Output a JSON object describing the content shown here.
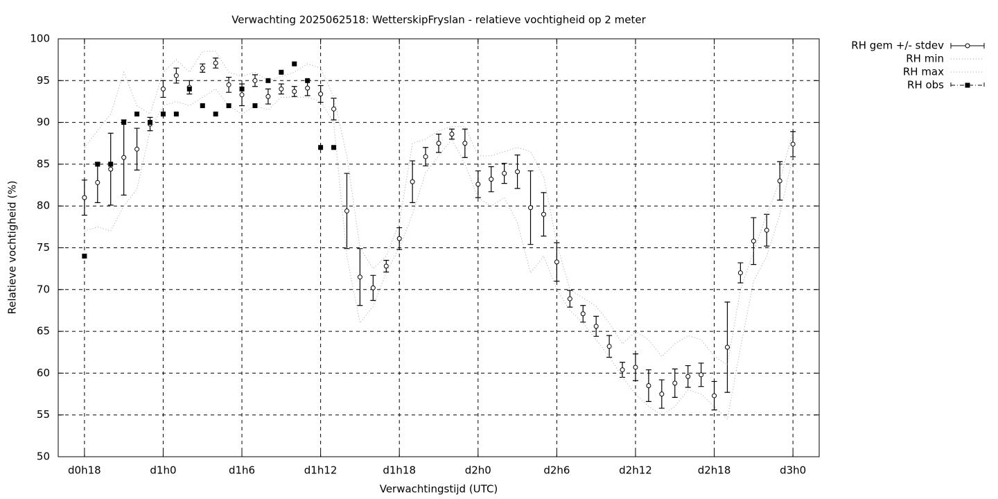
{
  "chart_data": {
    "type": "errorbar",
    "title": "Verwachting 2025062518: WetterskipFryslan - relatieve vochtigheid op 2 meter",
    "x_label": "Verwachtingstijd (UTC)",
    "y_label": "Relatieve vochtigheid (%)",
    "x": [
      18,
      19,
      20,
      21,
      22,
      23,
      24,
      25,
      26,
      27,
      28,
      29,
      30,
      31,
      32,
      33,
      34,
      35,
      36,
      37,
      38,
      39,
      40,
      41,
      42,
      43,
      44,
      45,
      46,
      47,
      48,
      49,
      50,
      51,
      52,
      53,
      54,
      55,
      56,
      57,
      58,
      59,
      60,
      61,
      62,
      63,
      64,
      65,
      66,
      67,
      68,
      69,
      70,
      71,
      72
    ],
    "xlim": [
      16,
      74
    ],
    "xticks": [
      {
        "value": 18,
        "label": "d0h18"
      },
      {
        "value": 24,
        "label": "d1h0"
      },
      {
        "value": 30,
        "label": "d1h6"
      },
      {
        "value": 36,
        "label": "d1h12"
      },
      {
        "value": 42,
        "label": "d1h18"
      },
      {
        "value": 48,
        "label": "d2h0"
      },
      {
        "value": 54,
        "label": "d2h6"
      },
      {
        "value": 60,
        "label": "d2h12"
      },
      {
        "value": 66,
        "label": "d2h18"
      },
      {
        "value": 72,
        "label": "d3h0"
      }
    ],
    "ylim": [
      50,
      100
    ],
    "yticks": [
      50,
      55,
      60,
      65,
      70,
      75,
      80,
      85,
      90,
      95,
      100
    ],
    "grid": true,
    "legend": "outside-top-right",
    "series": [
      {
        "name": "RH gem +/- stdev",
        "color": "#000000",
        "style": "errorbar",
        "values": [
          81.0,
          82.8,
          84.4,
          85.8,
          86.8,
          89.8,
          94.0,
          95.6,
          94.2,
          96.5,
          97.1,
          94.5,
          93.3,
          95.0,
          93.1,
          94.0,
          93.7,
          94.1,
          93.4,
          91.6,
          79.4,
          71.5,
          70.2,
          72.8,
          76.1,
          82.9,
          85.9,
          87.5,
          88.6,
          87.5,
          82.6,
          83.2,
          83.9,
          84.1,
          79.8,
          79.0,
          73.3,
          68.9,
          67.1,
          65.6,
          63.2,
          60.4,
          60.7,
          58.5,
          57.5,
          58.8,
          59.6,
          59.8,
          57.3,
          63.1,
          72.0,
          75.8,
          77.1,
          83.0,
          87.4
        ],
        "errors": [
          2.1,
          2.4,
          4.3,
          4.5,
          2.5,
          0.8,
          1.0,
          0.9,
          0.8,
          0.5,
          0.6,
          0.9,
          1.3,
          0.7,
          0.9,
          0.6,
          0.6,
          0.9,
          1.0,
          1.3,
          4.5,
          3.4,
          1.5,
          0.7,
          1.3,
          2.5,
          1.1,
          1.1,
          0.6,
          1.7,
          1.6,
          1.5,
          1.2,
          2.0,
          4.4,
          2.6,
          2.3,
          1.0,
          1.0,
          1.2,
          1.3,
          0.9,
          1.6,
          1.9,
          1.7,
          1.7,
          1.3,
          1.4,
          1.7,
          5.4,
          1.2,
          2.8,
          1.9,
          2.3,
          1.5
        ]
      },
      {
        "name": "RH min",
        "color": "#a0a0a0",
        "style": "dotted",
        "values": [
          77,
          77.5,
          77,
          80,
          82,
          89,
          92,
          92.5,
          92,
          93,
          94,
          92,
          91,
          92,
          91.5,
          93,
          93,
          93,
          92.5,
          90,
          74,
          66,
          68,
          72,
          75,
          79,
          84,
          86,
          88,
          85,
          81,
          80,
          81,
          78,
          72,
          74,
          70,
          67.5,
          66,
          64,
          62,
          59.5,
          57.5,
          56,
          55,
          56,
          58,
          57.5,
          56,
          54.5,
          63,
          71,
          74,
          79,
          86
        ]
      },
      {
        "name": "RH max",
        "color": "#a0a0a0",
        "style": "dotted",
        "values": [
          87,
          89,
          91,
          96,
          92,
          91,
          96,
          97.5,
          96,
          98.5,
          98.5,
          96,
          95.5,
          96,
          95,
          95.5,
          96,
          97,
          96.5,
          93,
          86,
          75,
          72.5,
          74,
          78,
          87.5,
          88,
          89,
          89.5,
          89.5,
          86,
          86,
          86.5,
          87,
          86.5,
          83.5,
          75.5,
          70,
          69,
          68,
          66,
          63.5,
          65,
          64,
          62,
          63.5,
          64.5,
          64,
          62,
          61,
          70,
          74.5,
          79,
          83,
          89
        ]
      },
      {
        "name": "RH obs",
        "color": "#000000",
        "style": "squares",
        "values": [
          74,
          85,
          85,
          90,
          91,
          90,
          91,
          91,
          94,
          92,
          91,
          92,
          94,
          92,
          95,
          96,
          97,
          95,
          87,
          87,
          null,
          null,
          null,
          null,
          null,
          null,
          null,
          null,
          null,
          null,
          null,
          null,
          null,
          null,
          null,
          null,
          null,
          null,
          null,
          null,
          null,
          null,
          null,
          null,
          null,
          null,
          null,
          null,
          null,
          null,
          null,
          null,
          null,
          null,
          null
        ]
      }
    ]
  }
}
